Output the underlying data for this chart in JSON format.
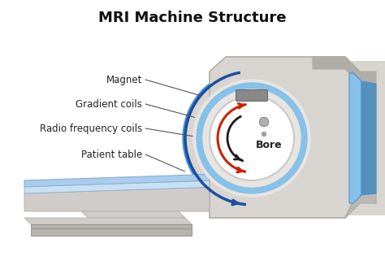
{
  "title": "MRI Machine Structure",
  "title_fontsize": 13,
  "title_fontweight": "bold",
  "background_color": "#ffffff",
  "labels": {
    "magnet": "Magnet",
    "gradient_coils": "Gradient coils",
    "radio_frequency_coils": "Radio frequency coils",
    "patient_table": "Patient table",
    "bore": "Bore"
  },
  "label_fontsize": 8.5,
  "colors": {
    "mri_body": "#d8d4cf",
    "mri_body_mid": "#c8c4bf",
    "mri_body_dark": "#b0aca6",
    "mri_body_shadow": "#bcb8b2",
    "bore_ring_blue_outer": "#4a90d9",
    "bore_ring_blue_inner": "#85c1e9",
    "bore_face_light": "#e8e4df",
    "bore_face_dark": "#c8c4bf",
    "bore_hole": "#f5f5f5",
    "bore_hole_white": "#ffffff",
    "table_top_blue": "#aaccee",
    "table_top_light": "#c8e0f4",
    "table_side_blue": "#8aaecc",
    "table_body": "#d0ccca",
    "table_body_dark": "#b8b4b0",
    "table_base_top": "#d0ccca",
    "table_base_dark": "#a8a4a0",
    "arrow_blue": "#1a4fa0",
    "arrow_red": "#cc2200",
    "arrow_black": "#1a1a1a",
    "line_color": "#555555",
    "panel_gray": "#888888",
    "right_side_blue": "#85c1e9",
    "right_side_blue_dark": "#5590bb"
  }
}
